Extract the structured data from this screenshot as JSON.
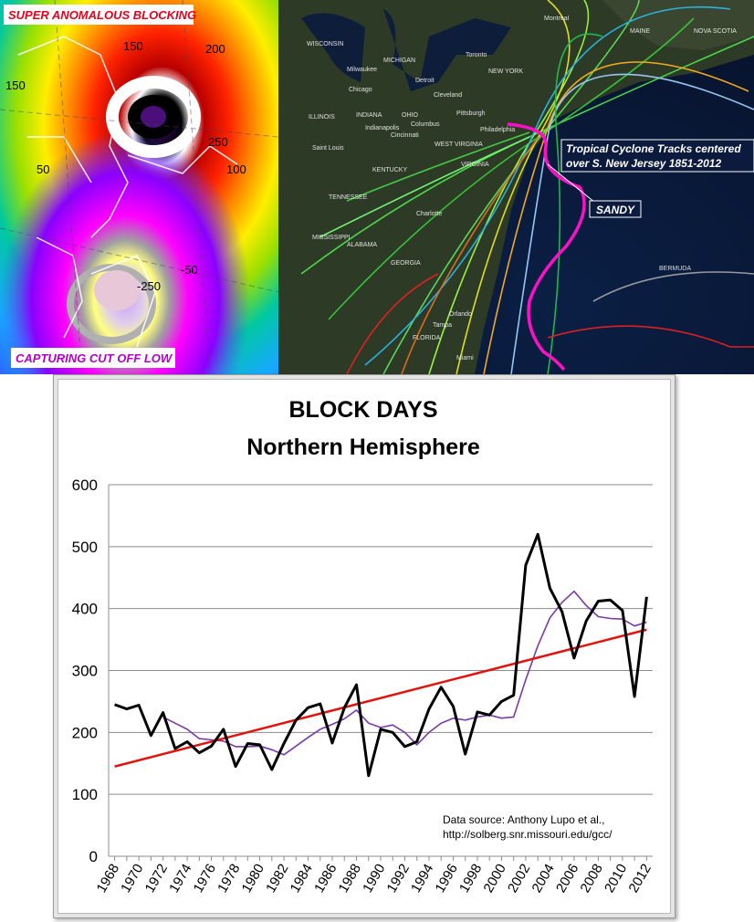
{
  "panels": {
    "blocking_map": {
      "label_top": "SUPER ANOMALOUS BLOCKING",
      "label_bottom": "CAPTURING CUT OFF LOW",
      "contour_labels": [
        "150",
        "200",
        "250",
        "100",
        "150",
        "50",
        "-50",
        "-250"
      ]
    },
    "tracks_map": {
      "title_line1": "Tropical Cyclone Tracks centered",
      "title_line2": "over S. New Jersey 1851-2012",
      "storm_label": "SANDY",
      "place_labels": [
        "WISCONSIN",
        "MICHIGAN",
        "Milwaukee",
        "Detroit",
        "Toronto",
        "Montreal",
        "Chicago",
        "Cleveland",
        "NEW YORK",
        "ILLINOIS",
        "INDIANA",
        "OHIO",
        "Columbus",
        "Pittsburgh",
        "Indianapolis",
        "Cincinnati",
        "Philadelphia",
        "Saint Louis",
        "WEST VIRGINIA",
        "VIRGINIA",
        "KENTUCKY",
        "TENNESSEE",
        "MISSISSIPPI",
        "ALABAMA",
        "GEORGIA",
        "Charlotte",
        "FLORIDA",
        "Orlando",
        "Tampa",
        "Miami",
        "BERMUDA",
        "NOVA SCOTIA",
        "MAINE"
      ]
    }
  },
  "chart_data": {
    "type": "line",
    "title_line1": "BLOCK DAYS",
    "title_line2": "Northern Hemisphere",
    "xlabel": "",
    "ylabel": "",
    "ylim": [
      0,
      600
    ],
    "yticks": [
      0,
      100,
      200,
      300,
      400,
      500,
      600
    ],
    "x": [
      1968,
      1969,
      1970,
      1971,
      1972,
      1973,
      1974,
      1975,
      1976,
      1977,
      1978,
      1979,
      1980,
      1981,
      1982,
      1983,
      1984,
      1985,
      1986,
      1987,
      1988,
      1989,
      1990,
      1991,
      1992,
      1993,
      1994,
      1995,
      1996,
      1997,
      1998,
      1999,
      2000,
      2001,
      2002,
      2003,
      2004,
      2005,
      2006,
      2007,
      2008,
      2009,
      2010,
      2011,
      2012
    ],
    "xtick_labels": [
      "1968",
      "1970",
      "1972",
      "1974",
      "1976",
      "1978",
      "1980",
      "1982",
      "1984",
      "1986",
      "1988",
      "1990",
      "1992",
      "1994",
      "1996",
      "1998",
      "2000",
      "2002",
      "2004",
      "2006",
      "2008",
      "2010",
      "2012"
    ],
    "grid": true,
    "series": [
      {
        "name": "",
        "color": "#000000",
        "values": [
          245,
          238,
          244,
          195,
          232,
          174,
          185,
          167,
          178,
          205,
          145,
          182,
          180,
          140,
          182,
          220,
          240,
          246,
          183,
          240,
          277,
          130,
          205,
          200,
          177,
          185,
          238,
          273,
          242,
          165,
          233,
          228,
          250,
          260,
          470,
          520,
          433,
          395,
          320,
          380,
          412,
          414,
          397,
          258,
          419
        ]
      },
      {
        "name": "",
        "color": "#7a3aa8",
        "values": [
          null,
          null,
          null,
          null,
          225,
          215,
          205,
          190,
          188,
          186,
          177,
          177,
          178,
          172,
          164,
          178,
          192,
          205,
          213,
          222,
          236,
          215,
          208,
          212,
          200,
          180,
          200,
          215,
          223,
          220,
          225,
          228,
          223,
          225,
          285,
          340,
          385,
          410,
          428,
          405,
          387,
          384,
          383,
          372,
          378
        ]
      },
      {
        "name": "",
        "color": "#e3120b",
        "trend_start": [
          1968,
          145
        ],
        "trend_end": [
          2012,
          366
        ]
      }
    ],
    "annotation_line1": "Data source: Anthony Lupo et al.,",
    "annotation_line2": "http://solberg.snr.missouri.edu/gcc/"
  }
}
